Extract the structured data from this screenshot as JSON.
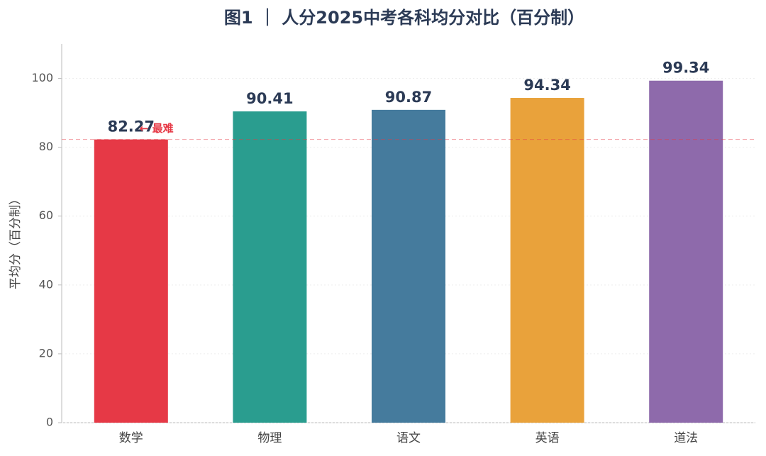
{
  "chart_data": {
    "type": "bar",
    "title": "图1 ｜ 人分2025中考各科均分对比（百分制）",
    "y_label": "平均分（百分制）",
    "categories": [
      "数学",
      "物理",
      "语文",
      "英语",
      "道法"
    ],
    "values": [
      82.27,
      90.41,
      90.87,
      94.34,
      99.34
    ],
    "colors": [
      "#e63946",
      "#2a9d8f",
      "#457b9d",
      "#e9a23b",
      "#8e6aab"
    ],
    "ylim": [
      0,
      110
    ],
    "yticks": [
      0,
      20,
      40,
      60,
      80,
      100
    ],
    "grid": true,
    "reference_line": {
      "value": 82.27,
      "label": "← 最难",
      "color": "#e63946"
    }
  }
}
